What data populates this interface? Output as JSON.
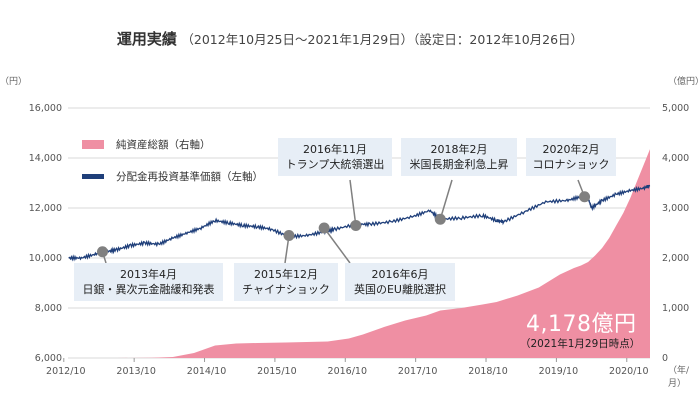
{
  "chart_data": {
    "type": "area",
    "title": "運用実績",
    "subtitle": "（2012年10月25日～2021年1月29日）（設定日：2012年10月26日）",
    "ylabel_left": "（円）",
    "ylabel_right": "（億円）",
    "xlabel": "（年/月）",
    "x_ticks": [
      "2012/10",
      "2013/10",
      "2014/10",
      "2015/10",
      "2016/10",
      "2017/10",
      "2018/10",
      "2019/10",
      "2020/10"
    ],
    "y_left_ticks": [
      "6,000",
      "8,000",
      "10,000",
      "12,000",
      "14,000",
      "16,000"
    ],
    "y_right_ticks": [
      "0",
      "1,000",
      "2,000",
      "3,000",
      "4,000",
      "5,000"
    ],
    "ylim_left": [
      6000,
      16000
    ],
    "ylim_right": [
      0,
      5000
    ],
    "xlim": [
      2012.81,
      2021.08
    ],
    "grid": true,
    "legend_position": "top-left",
    "colors": {
      "net_assets": "#ef8fa3",
      "nav": "#1f3f7a",
      "marker": "#808080",
      "callout_bg": "#e7eef6"
    },
    "series": [
      {
        "name": "純資産総額（右軸）",
        "axis": "right",
        "type": "area",
        "x": [
          2012.82,
          2013.5,
          2014.0,
          2014.3,
          2014.6,
          2014.9,
          2015.2,
          2015.5,
          2015.9,
          2016.2,
          2016.5,
          2016.8,
          2017.0,
          2017.3,
          2017.6,
          2017.9,
          2018.1,
          2018.4,
          2018.7,
          2018.9,
          2019.2,
          2019.5,
          2019.8,
          2020.0,
          2020.1,
          2020.2,
          2020.3,
          2020.4,
          2020.5,
          2020.6,
          2020.7,
          2020.8,
          2020.9,
          2021.0,
          2021.08
        ],
        "values": [
          0,
          0,
          5,
          20,
          100,
          250,
          290,
          300,
          310,
          320,
          330,
          390,
          470,
          620,
          750,
          850,
          950,
          1000,
          1070,
          1120,
          1250,
          1410,
          1670,
          1800,
          1850,
          1920,
          2050,
          2200,
          2400,
          2650,
          2900,
          3200,
          3550,
          3900,
          4178
        ]
      },
      {
        "name": "分配金再投資基準価額（左軸）",
        "axis": "left",
        "type": "line",
        "x": [
          2012.82,
          2013.0,
          2013.2,
          2013.35,
          2013.5,
          2013.7,
          2013.9,
          2014.1,
          2014.3,
          2014.5,
          2014.7,
          2014.9,
          2015.1,
          2015.3,
          2015.5,
          2015.7,
          2015.95,
          2016.2,
          2016.45,
          2016.6,
          2016.9,
          2017.1,
          2017.4,
          2017.7,
          2017.95,
          2018.1,
          2018.4,
          2018.7,
          2018.9,
          2019.0,
          2019.3,
          2019.6,
          2019.9,
          2020.1,
          2020.2,
          2020.25,
          2020.4,
          2020.6,
          2020.8,
          2021.0,
          2021.08
        ],
        "values": [
          10000,
          10000,
          10150,
          10250,
          10330,
          10500,
          10600,
          10550,
          10800,
          11000,
          11200,
          11500,
          11400,
          11300,
          11250,
          11150,
          10850,
          10900,
          11050,
          11150,
          11350,
          11350,
          11450,
          11650,
          11900,
          11550,
          11600,
          11700,
          11500,
          11450,
          11850,
          12250,
          12300,
          12450,
          12400,
          12000,
          12300,
          12550,
          12700,
          12800,
          12900
        ]
      }
    ],
    "annotations": [
      {
        "date": "2013年4月",
        "label": "日銀・異次元金融緩和発表",
        "x": 2013.3,
        "y": 10250
      },
      {
        "date": "2015年12月",
        "label": "チャイナショック",
        "x": 2015.95,
        "y": 10900
      },
      {
        "date": "2016年6月",
        "label": "英国のEU離脱選択",
        "x": 2016.45,
        "y": 11200
      },
      {
        "date": "2016年11月",
        "label": "トランプ大統領選出",
        "x": 2016.9,
        "y": 11300
      },
      {
        "date": "2018年2月",
        "label": "米国長期金利急上昇",
        "x": 2018.1,
        "y": 11550
      },
      {
        "date": "2020年2月",
        "label": "コロナショック",
        "x": 2020.15,
        "y": 12450
      }
    ],
    "highlight": {
      "value": "4,178億円",
      "note": "（2021年1月29日時点）"
    }
  }
}
